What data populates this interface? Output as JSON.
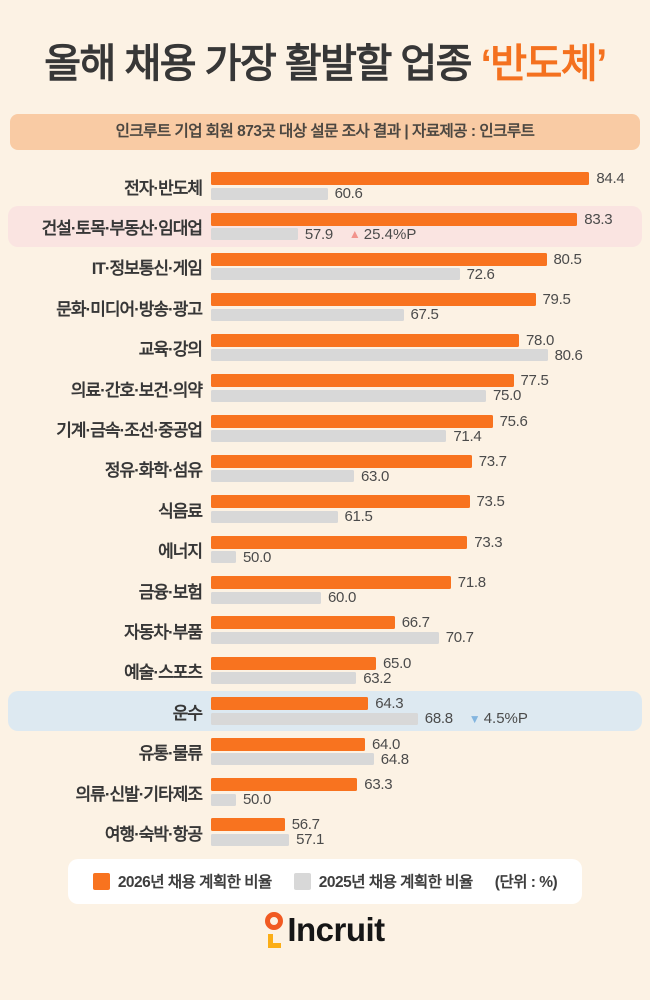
{
  "header": {
    "title_prefix": "올해 채용 가장 활발할 업종 ",
    "title_accent": "‘반도체’",
    "subtitle": "인크루트 기업 회원 873곳 대상 설문 조사 결과 | 자료제공 : 인크루트"
  },
  "colors": {
    "page_background": "#FCF2E4",
    "title_text": "#373737",
    "title_accent": "#F4711F",
    "subtitle_background": "#F9CBA4",
    "bar_2026": "#F8731F",
    "bar_2025": "#D8D8D8",
    "highlight_up_row": "#FAE4E1",
    "highlight_down_row": "#DDE9F1",
    "triangle_up": "#F2938C",
    "triangle_down": "#83B5DF",
    "legend_background": "#FFFFFF"
  },
  "chart_data": {
    "type": "bar",
    "orientation": "horizontal",
    "unit": "%",
    "xlim": [
      0,
      100
    ],
    "grid": false,
    "legend_position": "bottom",
    "categories": [
      "전자·반도체",
      "건설·토목·부동산·임대업",
      "IT·정보통신·게임",
      "문화·미디어·방송·광고",
      "교육·강의",
      "의료·간호·보건·의약",
      "기계·금속·조선·중공업",
      "정유·화학·섬유",
      "식음료",
      "에너지",
      "금융·보험",
      "자동차·부품",
      "예술·스포츠",
      "운수",
      "유통·물류",
      "의류·신발·기타제조",
      "여행·숙박·항공"
    ],
    "series": [
      {
        "name": "2026년 채용 계획한 비율",
        "color": "#F8731F",
        "values": [
          84.4,
          83.3,
          80.5,
          79.5,
          78.0,
          77.5,
          75.6,
          73.7,
          73.5,
          73.3,
          71.8,
          66.7,
          65.0,
          64.3,
          64.0,
          63.3,
          56.7
        ]
      },
      {
        "name": "2025년 채용 계획한 비율",
        "color": "#D8D8D8",
        "values": [
          60.6,
          57.9,
          72.6,
          67.5,
          80.6,
          75.0,
          71.4,
          63.0,
          61.5,
          50.0,
          60.0,
          70.7,
          63.2,
          68.8,
          64.8,
          50.0,
          57.1
        ]
      }
    ],
    "annotations": [
      {
        "category_index": 1,
        "category": "건설·토목·부동산·임대업",
        "direction": "up",
        "symbol": "▲",
        "text": "25.4%P",
        "triangle_color": "#F2938C",
        "row_background": "#FAE4E1"
      },
      {
        "category_index": 13,
        "category": "운수",
        "direction": "down",
        "symbol": "▼",
        "text": "4.5%P",
        "triangle_color": "#83B5DF",
        "row_background": "#DDE9F1"
      }
    ]
  },
  "legend": {
    "items": [
      {
        "label": "2026년 채용 계획한 비율",
        "color": "#F8731F"
      },
      {
        "label": "2025년 채용 계획한 비율",
        "color": "#D8D8D8"
      }
    ],
    "unit_note": "(단위 : %)"
  },
  "footer": {
    "logo_text": "Incruit"
  }
}
